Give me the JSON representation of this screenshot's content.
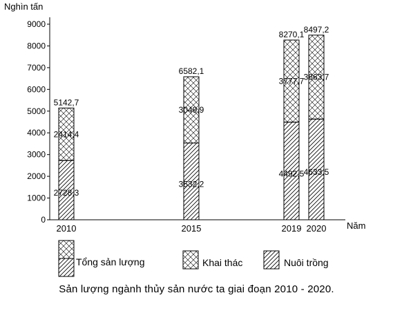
{
  "chart_data": {
    "type": "bar",
    "stacked": true,
    "title": "Sản lượng ngành thủy sản nước ta giai đoạn 2010 - 2020.",
    "ylabel": "Nghìn tấn",
    "xlabel": "Năm",
    "ylim": [
      0,
      9000
    ],
    "yticks": [
      "0",
      "1000",
      "2000",
      "3000",
      "4000",
      "5000",
      "6000",
      "7000",
      "8000",
      "9000"
    ],
    "grid": false,
    "categories": [
      "2010",
      "2015",
      "2019",
      "2020"
    ],
    "x": [
      2010,
      2015,
      2019,
      2020
    ],
    "totals": [
      5142.7,
      6582.1,
      8270.1,
      8497.2
    ],
    "total_labels": [
      "5142,7",
      "6582,1",
      "8270,1",
      "8497,2"
    ],
    "series": [
      {
        "name": "Nuôi trồng",
        "values": [
          2728.3,
          3532.2,
          4492.5,
          4633.5
        ],
        "labels": [
          "2728,3",
          "3532,2",
          "4492,5",
          "4633,5"
        ],
        "pattern": "diagonal-hatch"
      },
      {
        "name": "Khai thác",
        "values": [
          2414.4,
          3049.9,
          3777.7,
          3863.7
        ],
        "labels": [
          "2414,4",
          "3049,9",
          "3777,7",
          "3863,7"
        ],
        "pattern": "cross-hatch"
      }
    ],
    "legend": {
      "position": "bottom",
      "items": [
        {
          "label": "Tổng sản lượng",
          "kind": "combined"
        },
        {
          "label": "Khai thác",
          "kind": "cross-hatch"
        },
        {
          "label": "Nuôi trồng",
          "kind": "diagonal-hatch"
        }
      ]
    }
  }
}
